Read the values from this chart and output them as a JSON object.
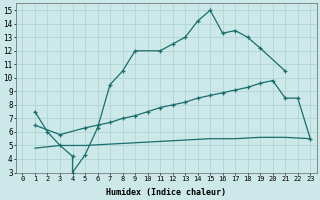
{
  "xlabel": "Humidex (Indice chaleur)",
  "bg_color": "#cce8e8",
  "grid_color": "#b0d4d4",
  "line_color": "#1a6e6e",
  "xlim": [
    -0.5,
    23.5
  ],
  "ylim": [
    3,
    15.5
  ],
  "xticks": [
    0,
    1,
    2,
    3,
    4,
    5,
    6,
    7,
    8,
    9,
    10,
    11,
    12,
    13,
    14,
    15,
    16,
    17,
    18,
    19,
    20,
    21,
    22,
    23
  ],
  "yticks": [
    3,
    4,
    5,
    6,
    7,
    8,
    9,
    10,
    11,
    12,
    13,
    14,
    15
  ],
  "line1_x": [
    1,
    2,
    3,
    4,
    4,
    5,
    6,
    7,
    8,
    9,
    11,
    12,
    13,
    14,
    15,
    16,
    17,
    18,
    19,
    21
  ],
  "line1_y": [
    7.5,
    6.0,
    5.0,
    4.2,
    3.0,
    4.3,
    6.3,
    9.5,
    10.5,
    12.0,
    12.0,
    12.5,
    13.0,
    14.2,
    15.0,
    13.3,
    13.5,
    13.0,
    12.2,
    10.5
  ],
  "line2_x": [
    1,
    3,
    5,
    6,
    7,
    8,
    9,
    10,
    11,
    12,
    13,
    14,
    15,
    16,
    17,
    18,
    19,
    20,
    21,
    22,
    23
  ],
  "line2_y": [
    6.5,
    5.8,
    6.3,
    6.5,
    6.7,
    7.0,
    7.2,
    7.5,
    7.8,
    8.0,
    8.2,
    8.5,
    8.7,
    8.9,
    9.1,
    9.3,
    9.6,
    9.8,
    8.5,
    8.5,
    5.5
  ],
  "line3_x": [
    1,
    3,
    5,
    7,
    9,
    11,
    13,
    15,
    17,
    19,
    21,
    23
  ],
  "line3_y": [
    4.8,
    5.0,
    5.0,
    5.1,
    5.2,
    5.3,
    5.4,
    5.5,
    5.5,
    5.6,
    5.6,
    5.5
  ]
}
